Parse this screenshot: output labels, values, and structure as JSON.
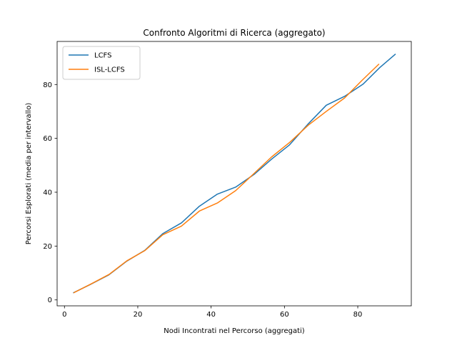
{
  "chart_data": {
    "type": "line",
    "title": "Confronto Algoritmi di Ricerca (aggregato)",
    "xlabel": "Nodi Incontrati nel Percorso (aggregati)",
    "ylabel": "Percorsi Esplorati (media per intervallo)",
    "xlim": [
      -2.0,
      94.6
    ],
    "ylim": [
      -2.2,
      96.0
    ],
    "xticks": [
      0,
      20,
      40,
      60,
      80
    ],
    "yticks": [
      0,
      20,
      40,
      60,
      80
    ],
    "grid": false,
    "legend_position": "upper-left",
    "series": [
      {
        "name": "LCFS",
        "color": "#1f77b4",
        "x": [
          2.5,
          7.3,
          12.1,
          17.0,
          21.9,
          26.8,
          31.9,
          36.8,
          41.7,
          46.7,
          51.7,
          56.5,
          61.4,
          66.5,
          71.4,
          76.4,
          81.4,
          86.0,
          90.2
        ],
        "y": [
          2.7,
          5.9,
          9.3,
          14.4,
          18.4,
          24.6,
          28.6,
          34.8,
          39.3,
          41.9,
          46.6,
          52.3,
          57.6,
          65.4,
          72.3,
          75.6,
          80.1,
          86.3,
          91.2
        ]
      },
      {
        "name": "ISL-LCFS",
        "color": "#ff7f0e",
        "x": [
          2.6,
          7.5,
          12.2,
          17.0,
          21.9,
          26.8,
          31.9,
          36.8,
          41.7,
          46.7,
          51.5,
          56.5,
          61.5,
          66.5,
          71.4,
          76.4,
          81.2,
          85.7
        ],
        "y": [
          2.7,
          6.1,
          9.5,
          14.5,
          18.3,
          24.2,
          27.4,
          33.0,
          36.0,
          40.6,
          46.7,
          53.1,
          58.6,
          64.9,
          70.0,
          75.0,
          81.6,
          87.5
        ]
      }
    ]
  }
}
